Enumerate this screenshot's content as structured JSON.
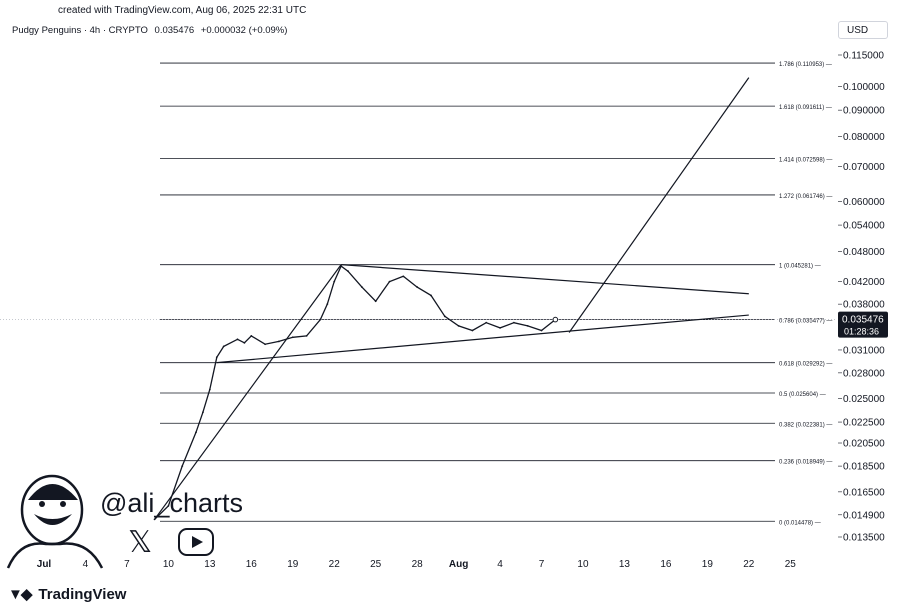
{
  "header": {
    "credit": "created with TradingView.com, Aug 06, 2025 22:31 UTC",
    "symbol": "Pudgy Penguins · 4h · CRYPTO",
    "price": "0.035476",
    "change": "+0.000032 (+0.09%)",
    "currency": "USD"
  },
  "footer": {
    "brand": "TradingView",
    "brand_icon": "tradingview-logo-icon"
  },
  "watermark": {
    "handle": "@ali_charts",
    "icons": [
      "avatar-caricature",
      "x-icon",
      "youtube-icon"
    ]
  },
  "colors": {
    "line": "#131722",
    "grid": "#b2b5be",
    "price_tag": "#131722",
    "price_tag_text": "#ffffff"
  },
  "chart_data": {
    "type": "line",
    "x_ticks": [
      "Jul",
      "4",
      "7",
      "10",
      "13",
      "16",
      "19",
      "22",
      "25",
      "28",
      "Aug",
      "4",
      "7",
      "10",
      "13",
      "16",
      "19",
      "22",
      "25"
    ],
    "y_ticks": [
      "0.115000",
      "0.100000",
      "0.090000",
      "0.080000",
      "0.070000",
      "0.060000",
      "0.054000",
      "0.048000",
      "0.042000",
      "0.038000",
      "0.031000",
      "0.028000",
      "0.025000",
      "0.022500",
      "0.020500",
      "0.018500",
      "0.016500",
      "0.014900",
      "0.013500"
    ],
    "y_scale": "log",
    "price_tag": {
      "value": "0.035476",
      "countdown": "01:28:36"
    },
    "fib_levels": [
      {
        "label": "1.786 (0.110953)",
        "value": 0.110953
      },
      {
        "label": "1.618 (0.091611)",
        "value": 0.091611
      },
      {
        "label": "1.414 (0.072598)",
        "value": 0.072598
      },
      {
        "label": "1.272 (0.061746)",
        "value": 0.061746
      },
      {
        "label": "1 (0.045281)",
        "value": 0.045281
      },
      {
        "label": "0.786 (0.035477)",
        "value": 0.035477
      },
      {
        "label": "0.618 (0.029292)",
        "value": 0.029292
      },
      {
        "label": "0.5 (0.025604)",
        "value": 0.025604
      },
      {
        "label": "0.382 (0.022381)",
        "value": 0.022381
      },
      {
        "label": "0.236 (0.018949)",
        "value": 0.018949
      },
      {
        "label": "0 (0.014478)",
        "value": 0.014478
      }
    ],
    "series": [
      {
        "x": [
          "2025-07-09",
          "2025-07-10",
          "2025-07-11",
          "2025-07-12",
          "2025-07-12T12",
          "2025-07-13",
          "2025-07-13T12",
          "2025-07-14",
          "2025-07-15",
          "2025-07-15T12",
          "2025-07-16",
          "2025-07-17",
          "2025-07-18",
          "2025-07-19",
          "2025-07-20",
          "2025-07-21",
          "2025-07-21T12",
          "2025-07-22",
          "2025-07-22T12",
          "2025-07-23",
          "2025-07-24",
          "2025-07-25",
          "2025-07-26",
          "2025-07-27",
          "2025-07-28",
          "2025-07-29",
          "2025-07-30",
          "2025-07-31",
          "2025-08-01",
          "2025-08-02",
          "2025-08-03",
          "2025-08-04",
          "2025-08-05",
          "2025-08-06",
          "2025-08-07"
        ],
        "y": [
          0.0146,
          0.0155,
          0.0185,
          0.0215,
          0.0235,
          0.026,
          0.03,
          0.0315,
          0.0325,
          0.032,
          0.033,
          0.0318,
          0.0322,
          0.0328,
          0.033,
          0.0355,
          0.038,
          0.042,
          0.045,
          0.044,
          0.041,
          0.0385,
          0.042,
          0.043,
          0.041,
          0.0395,
          0.036,
          0.0345,
          0.0338,
          0.035,
          0.0342,
          0.035,
          0.0345,
          0.0338,
          0.03548
        ]
      }
    ],
    "trendlines": [
      {
        "from": {
          "x": "2025-07-13T12",
          "y": 0.0293
        },
        "to": {
          "x": "2025-08-21",
          "y": 0.0362
        }
      },
      {
        "from": {
          "x": "2025-07-22T12",
          "y": 0.0453
        },
        "to": {
          "x": "2025-08-21",
          "y": 0.0398
        }
      },
      {
        "from": {
          "x": "2025-07-09",
          "y": 0.0146
        },
        "to": {
          "x": "2025-07-22T12",
          "y": 0.0453
        }
      },
      {
        "from": {
          "x": "2025-08-08",
          "y": 0.0335
        },
        "to": {
          "x": "2025-08-21",
          "y": 0.104
        }
      }
    ]
  }
}
